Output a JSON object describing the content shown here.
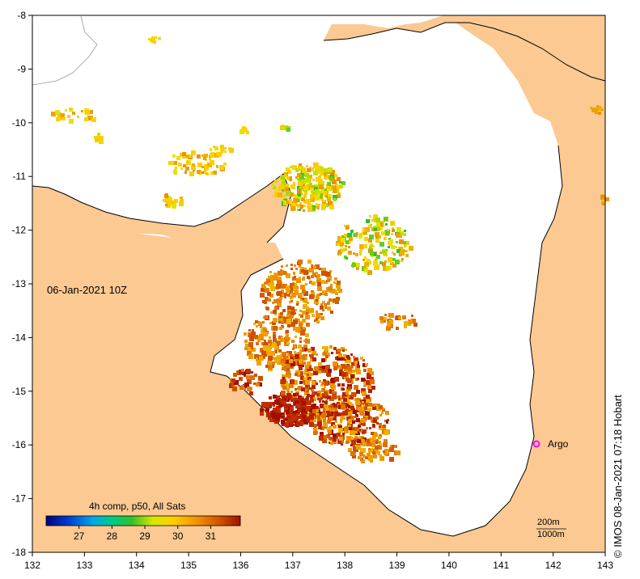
{
  "map": {
    "timestamp": "06-Jan-2021 10Z",
    "credit": "© IMOS 08-Jan-2021 07:18 Hobart",
    "lon_ticks": [
      "132",
      "133",
      "134",
      "135",
      "136",
      "137",
      "138",
      "139",
      "140",
      "141",
      "142",
      "143"
    ],
    "lat_ticks": [
      "-8",
      "-9",
      "-10",
      "-11",
      "-12",
      "-13",
      "-14",
      "-15",
      "-16",
      "-17",
      "-18"
    ],
    "lon_range": [
      132,
      143
    ],
    "lat_range": [
      -8,
      -18
    ],
    "colors": {
      "land": "#fcc992",
      "sea": "#ffffff",
      "coast": "#000000"
    },
    "markers": [
      {
        "label": "Argo",
        "lon": 141.7,
        "lat": -16.0,
        "color": "#ff00ff"
      }
    ],
    "isobaths": [
      "200m",
      "1000m"
    ]
  },
  "colorbar": {
    "title": "4h comp, p50, All Sats",
    "tick_labels": [
      "27",
      "28",
      "29",
      "30",
      "31"
    ],
    "range": [
      26.0,
      31.9
    ],
    "colors": [
      "#000080",
      "#0033cc",
      "#00a0e0",
      "#00d080",
      "#30c030",
      "#c8e000",
      "#ffd000",
      "#f0a000",
      "#d06000",
      "#a01000"
    ]
  }
}
